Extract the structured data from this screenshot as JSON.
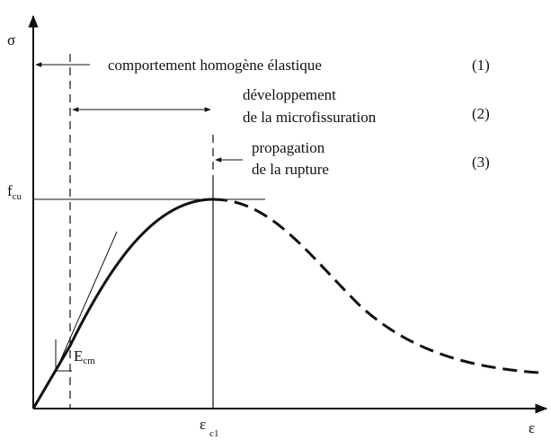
{
  "axes": {
    "y_label": "σ",
    "x_label": "ε",
    "peak_x": {
      "symbol": "ε",
      "subscript": "c1"
    },
    "peak_y": {
      "symbol": "f",
      "subscript": "cu"
    },
    "slope": {
      "symbol": "E",
      "subscript": "cm"
    }
  },
  "phases": [
    {
      "lines": [
        "comportement homogène élastique"
      ],
      "number": "(1)"
    },
    {
      "lines": [
        "développement",
        "de la microfissuration"
      ],
      "number": "(2)"
    },
    {
      "lines": [
        "propagation",
        "de la rupture"
      ],
      "number": "(3)"
    }
  ]
}
